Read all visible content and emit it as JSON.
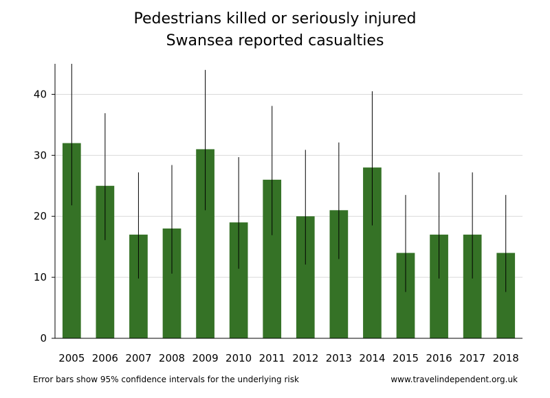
{
  "chart_data": {
    "type": "bar",
    "title": "Pedestrians killed or seriously injured",
    "subtitle": "Swansea reported casualties",
    "xlabel": "",
    "ylabel": "",
    "categories": [
      "2005",
      "2006",
      "2007",
      "2008",
      "2009",
      "2010",
      "2011",
      "2012",
      "2013",
      "2014",
      "2015",
      "2016",
      "2017",
      "2018"
    ],
    "values": [
      32,
      25,
      17,
      18,
      31,
      19,
      26,
      20,
      21,
      28,
      14,
      17,
      17,
      14
    ],
    "error_low": [
      21.8,
      16.1,
      9.8,
      10.6,
      21.0,
      11.4,
      16.9,
      12.1,
      13.0,
      18.5,
      7.6,
      9.8,
      9.8,
      7.6
    ],
    "error_high": [
      45.2,
      36.9,
      27.2,
      28.4,
      44.0,
      29.7,
      38.1,
      30.9,
      32.1,
      40.5,
      23.5,
      27.2,
      27.2,
      23.5
    ],
    "ylim": [
      0,
      45
    ],
    "yticks": [
      0,
      10,
      20,
      30,
      40
    ],
    "grid": true,
    "bar_color": "#357226"
  },
  "footer": {
    "note": "Error bars show 95% confidence intervals for the underlying risk",
    "source": "www.travelindependent.org.uk"
  }
}
